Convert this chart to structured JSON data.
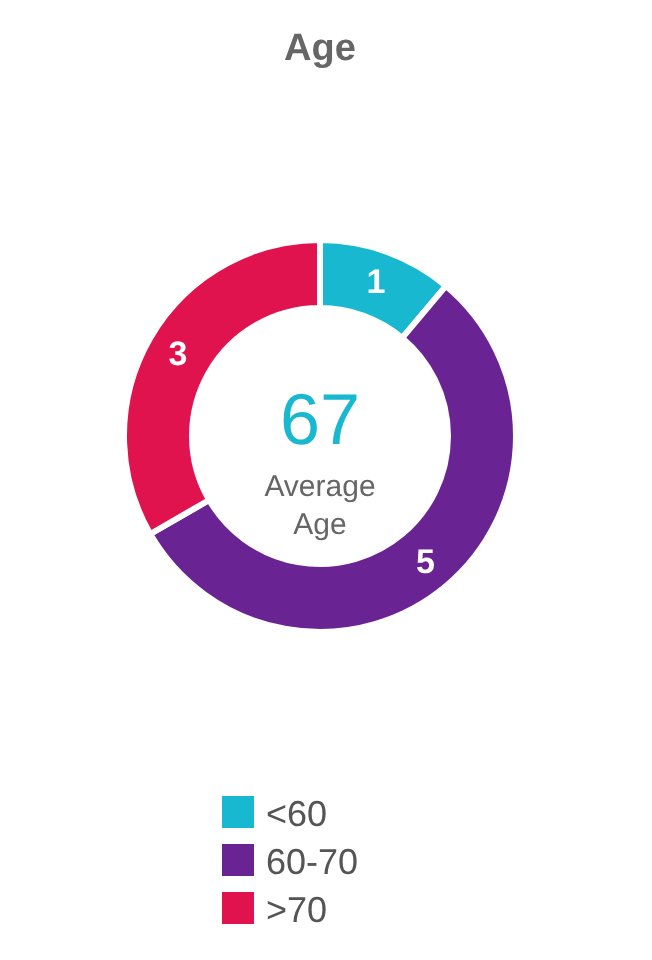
{
  "chart_data": {
    "type": "donut",
    "title": "Age",
    "categories": [
      "<60",
      "60-70",
      ">70"
    ],
    "values": [
      1,
      5,
      3
    ],
    "colors": [
      "#18b9d0",
      "#6a2392",
      "#e0134f"
    ],
    "data_labels": true,
    "legend": "bottom",
    "annotations": [
      "67",
      "Average Age"
    ]
  }
}
